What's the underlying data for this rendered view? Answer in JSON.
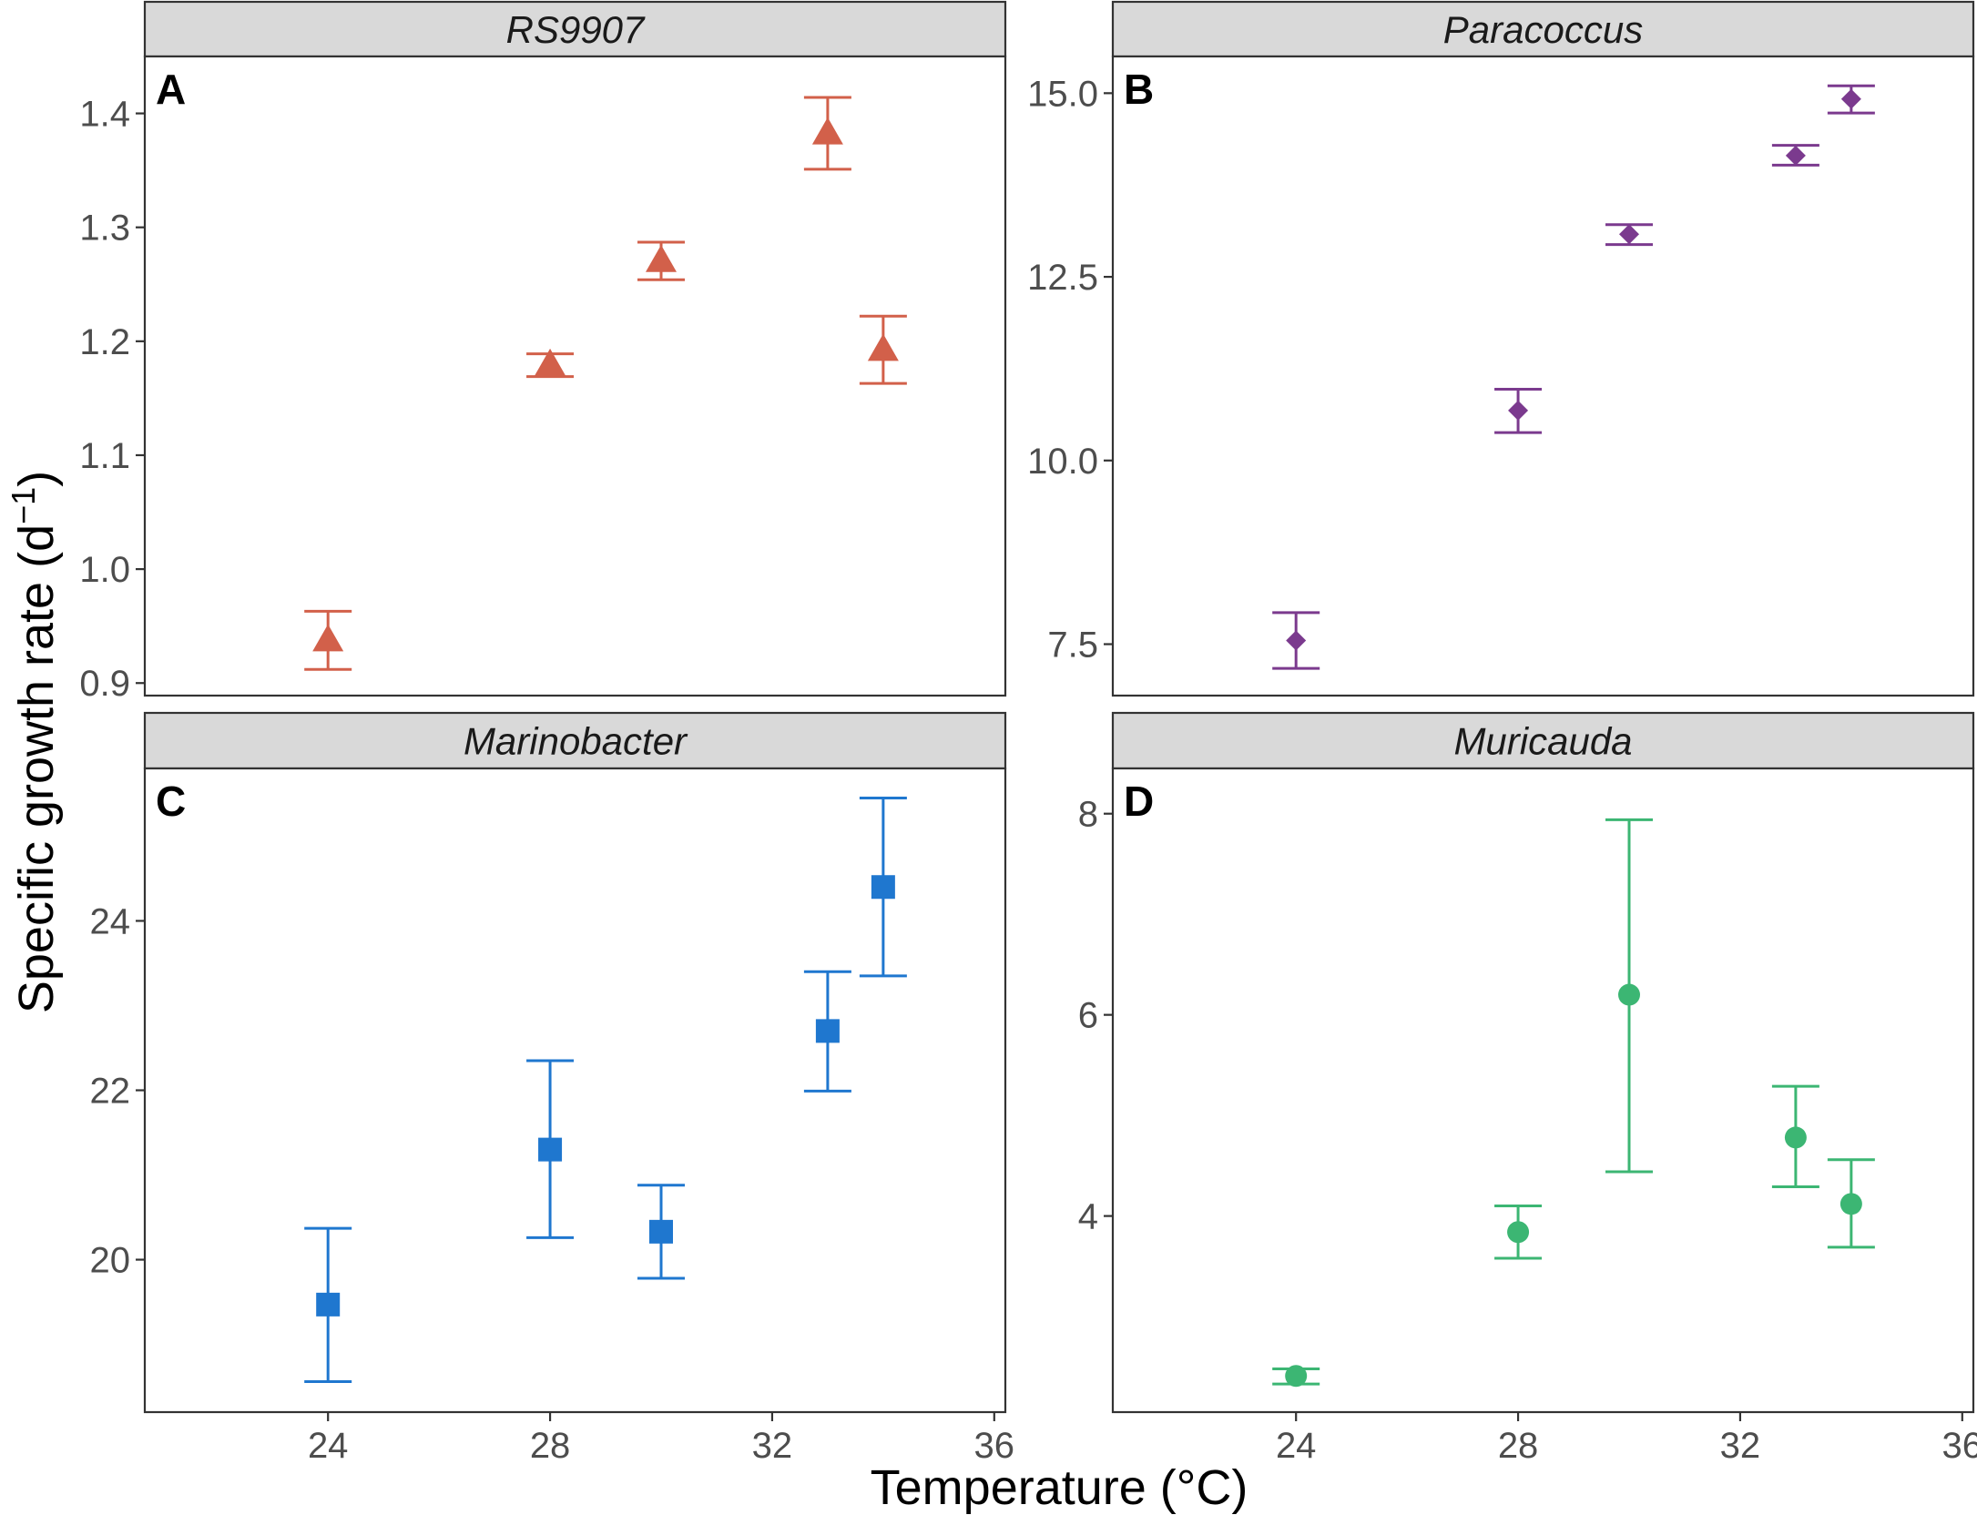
{
  "colors": {
    "RS9907": "#d2604a",
    "Paracoccus": "#7b3a8e",
    "Marinobacter": "#1f77cf",
    "Muricauda": "#3cb673",
    "strip_fill": "#d9d9d9",
    "frame": "#333333"
  },
  "axes": {
    "xlabel": "Temperature (°C)",
    "ylabel_main": "Specific growth rate (d",
    "ylabel_sup": "−1",
    "ylabel_close": ")"
  },
  "chart_data": [
    {
      "type": "scatter",
      "panel": "A",
      "title": "RS9907",
      "marker": "triangle",
      "color": "#d2604a",
      "xlim": [
        20.7,
        36.2
      ],
      "ylim": [
        0.889,
        1.45
      ],
      "xticks": [
        24,
        28,
        32,
        36
      ],
      "xtick_labels": [
        "24",
        "28",
        "32",
        "36"
      ],
      "yticks": [
        0.9,
        1.0,
        1.1,
        1.2,
        1.3,
        1.4
      ],
      "ytick_labels": [
        "0.9",
        "1.0",
        "1.1",
        "1.2",
        "1.3",
        "1.4"
      ],
      "x": [
        24,
        28,
        30,
        33,
        34
      ],
      "y": [
        0.938,
        1.18,
        1.271,
        1.383,
        1.193
      ],
      "ymin": [
        0.912,
        1.169,
        1.254,
        1.351,
        1.163
      ],
      "ymax": [
        0.963,
        1.189,
        1.287,
        1.414,
        1.222
      ]
    },
    {
      "type": "scatter",
      "panel": "B",
      "title": "Paracoccus",
      "marker": "diamond",
      "color": "#7b3a8e",
      "xlim": [
        20.7,
        36.2
      ],
      "ylim": [
        6.8,
        15.5
      ],
      "xticks": [
        24,
        28,
        32,
        36
      ],
      "xtick_labels": [
        "24",
        "28",
        "32",
        "36"
      ],
      "yticks": [
        7.5,
        10.0,
        12.5,
        15.0
      ],
      "ytick_labels": [
        "7.5",
        "10.0",
        "12.5",
        "15.0"
      ],
      "x": [
        24,
        28,
        30,
        33,
        34
      ],
      "y": [
        7.55,
        10.68,
        13.08,
        14.15,
        14.92
      ],
      "ymin": [
        7.17,
        10.38,
        12.94,
        14.02,
        14.73
      ],
      "ymax": [
        7.93,
        10.97,
        13.21,
        14.29,
        15.1
      ]
    },
    {
      "type": "scatter",
      "panel": "C",
      "title": "Marinobacter",
      "marker": "square",
      "color": "#1f77cf",
      "xlim": [
        20.7,
        36.2
      ],
      "ylim": [
        18.2,
        25.8
      ],
      "xticks": [
        24,
        28,
        32,
        36
      ],
      "xtick_labels": [
        "24",
        "28",
        "32",
        "36"
      ],
      "yticks": [
        20,
        22,
        24
      ],
      "ytick_labels": [
        "20",
        "22",
        "24"
      ],
      "x": [
        24,
        28,
        30,
        33,
        34
      ],
      "y": [
        19.47,
        21.3,
        20.33,
        22.7,
        24.4
      ],
      "ymin": [
        18.56,
        20.26,
        19.78,
        21.99,
        23.35
      ],
      "ymax": [
        20.37,
        22.35,
        20.88,
        23.4,
        25.45
      ]
    },
    {
      "type": "scatter",
      "panel": "D",
      "title": "Muricauda",
      "marker": "circle",
      "color": "#3cb673",
      "xlim": [
        20.7,
        36.2
      ],
      "ylim": [
        2.05,
        8.45
      ],
      "xticks": [
        24,
        28,
        32,
        36
      ],
      "xtick_labels": [
        "24",
        "28",
        "32",
        "36"
      ],
      "yticks": [
        4,
        6,
        8
      ],
      "ytick_labels": [
        "4",
        "6",
        "8"
      ],
      "x": [
        24,
        28,
        30,
        33,
        34
      ],
      "y": [
        2.41,
        3.84,
        6.2,
        4.78,
        4.12
      ],
      "ymin": [
        2.33,
        3.58,
        4.44,
        4.29,
        3.69
      ],
      "ymax": [
        2.48,
        4.1,
        7.94,
        5.29,
        4.56
      ]
    }
  ]
}
